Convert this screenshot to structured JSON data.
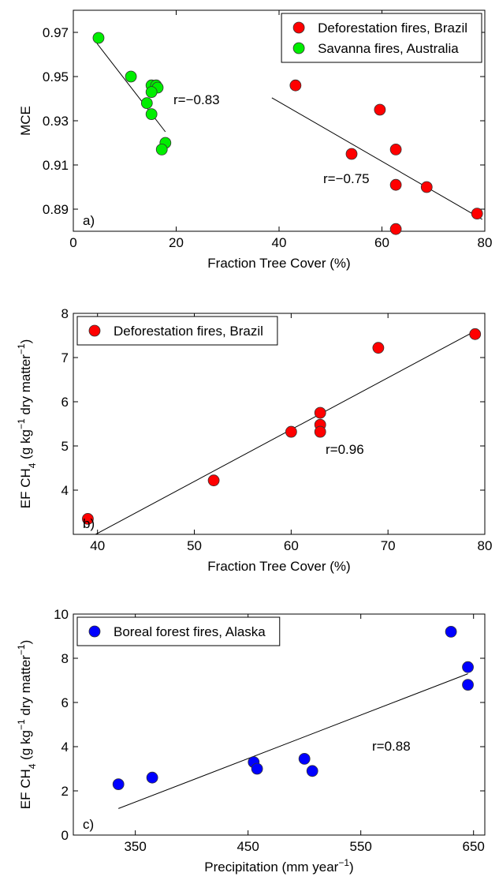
{
  "chart_data": [
    {
      "type": "scatter",
      "xlabel": [
        {
          "text": "Fraction Tree Cover (%)"
        }
      ],
      "ylabel": [
        {
          "text": "MCE"
        }
      ],
      "xlim": [
        0,
        80
      ],
      "xticks": [
        0,
        20,
        40,
        60,
        80
      ],
      "ylim": [
        0.88,
        0.98
      ],
      "yticks": [
        0.89,
        0.91,
        0.93,
        0.95,
        0.97
      ],
      "legend": "upper right",
      "panel_label": "a)",
      "annotations": [
        "r=−0.83",
        "r=−0.75"
      ],
      "series": [
        {
          "name": "Deforestation fires, Brazil",
          "color": "#ff0000",
          "x": [
            43.2,
            59.6,
            54.1,
            62.7,
            62.7,
            68.7,
            78.5,
            62.7
          ],
          "values": [
            0.946,
            0.935,
            0.915,
            0.917,
            0.901,
            0.9,
            0.888,
            0.881
          ],
          "fit": {
            "x": [
              38.6,
              79.5
            ],
            "y": [
              0.9404,
              0.8854
            ]
          }
        },
        {
          "name": "Savanna fires, Australia",
          "color": "#00ee00",
          "x": [
            4.9,
            11.2,
            15.2,
            16.1,
            16.4,
            15.2,
            14.3,
            15.2,
            17.9,
            17.2
          ],
          "values": [
            0.9675,
            0.95,
            0.946,
            0.946,
            0.945,
            0.943,
            0.938,
            0.933,
            0.92,
            0.917
          ],
          "fit": {
            "x": [
              4.6,
              17.9
            ],
            "y": [
              0.965,
              0.925
            ]
          }
        }
      ]
    },
    {
      "type": "scatter",
      "xlabel": [
        {
          "text": "Fraction Tree Cover (%)"
        }
      ],
      "ylabel": [
        {
          "text": "EF CH"
        },
        {
          "text": "4",
          "shift": "sub"
        },
        {
          "text": " (g kg"
        },
        {
          "text": "−1",
          "shift": "super"
        },
        {
          "text": " dry matter"
        },
        {
          "text": "−1",
          "shift": "super"
        },
        {
          "text": ")"
        }
      ],
      "xlim": [
        37.5,
        80
      ],
      "xticks": [
        40,
        50,
        60,
        70,
        80
      ],
      "ylim": [
        3,
        8
      ],
      "yticks": [
        4,
        5,
        6,
        7,
        8
      ],
      "legend": "upper left",
      "panel_label": "b)",
      "annotations": [
        "r=0.96"
      ],
      "series": [
        {
          "name": "Deforestation fires, Brazil",
          "color": "#ff0000",
          "x": [
            39,
            52,
            60,
            63,
            63,
            63,
            69,
            79
          ],
          "values": [
            3.35,
            4.22,
            5.32,
            5.75,
            5.48,
            5.32,
            7.22,
            7.53
          ],
          "fit": {
            "x": [
              39.8,
              79
            ],
            "y": [
              3.0,
              7.6
            ]
          }
        }
      ]
    },
    {
      "type": "scatter",
      "xlabel": [
        {
          "text": "Precipitation (mm year"
        },
        {
          "text": "−1",
          "shift": "super"
        },
        {
          "text": ")"
        }
      ],
      "ylabel": [
        {
          "text": "EF CH"
        },
        {
          "text": "4",
          "shift": "sub"
        },
        {
          "text": " (g kg"
        },
        {
          "text": "−1",
          "shift": "super"
        },
        {
          "text": " dry matter"
        },
        {
          "text": "−1",
          "shift": "super"
        },
        {
          "text": ")"
        }
      ],
      "xlim": [
        295,
        660
      ],
      "xticks": [
        350,
        450,
        550,
        650
      ],
      "ylim": [
        0,
        10
      ],
      "yticks": [
        0,
        2,
        4,
        6,
        8,
        10
      ],
      "legend": "upper left",
      "panel_label": "c)",
      "annotations": [
        "r=0.88"
      ],
      "series": [
        {
          "name": "Boreal forest fires, Alaska",
          "color": "#0000ff",
          "x": [
            335,
            365,
            455,
            458,
            500,
            507,
            630,
            645,
            645
          ],
          "values": [
            2.3,
            2.6,
            3.3,
            3.0,
            3.45,
            2.9,
            9.2,
            7.6,
            6.8
          ],
          "fit": {
            "x": [
              335,
              645
            ],
            "y": [
              1.2,
              7.3
            ]
          }
        }
      ]
    }
  ]
}
